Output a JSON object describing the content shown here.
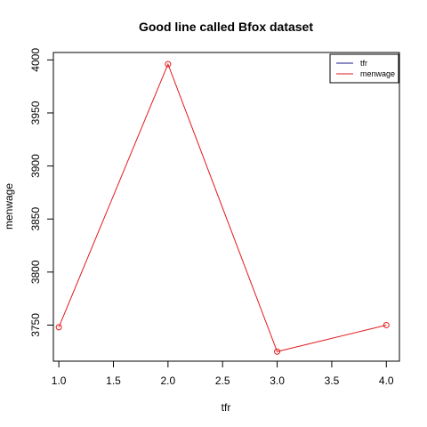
{
  "chart_data": {
    "type": "line",
    "title": "Good line called Bfox dataset",
    "xlabel": "tfr",
    "ylabel": "menwage",
    "xlim": [
      0.95,
      4.12
    ],
    "ylim": [
      3716,
      4007
    ],
    "x_ticks": [
      1.0,
      1.5,
      2.0,
      2.5,
      3.0,
      3.5,
      4.0
    ],
    "x_tick_labels": [
      "1.0",
      "1.5",
      "2.0",
      "2.5",
      "3.0",
      "3.5",
      "4.0"
    ],
    "y_ticks": [
      3750,
      3800,
      3850,
      3900,
      3950,
      4000
    ],
    "y_tick_labels": [
      "3750",
      "3800",
      "3850",
      "3900",
      "3950",
      "4000"
    ],
    "grid": false,
    "legend_position": "top-right",
    "legend": [
      {
        "label": "tfr",
        "color": "#1a1a8c"
      },
      {
        "label": "menwage",
        "color": "#e31a1c"
      }
    ],
    "series": [
      {
        "name": "menwage",
        "color": "#e31a1c",
        "x": [
          1,
          2,
          3,
          4
        ],
        "y": [
          3748,
          3996,
          3725,
          3750
        ]
      }
    ]
  }
}
